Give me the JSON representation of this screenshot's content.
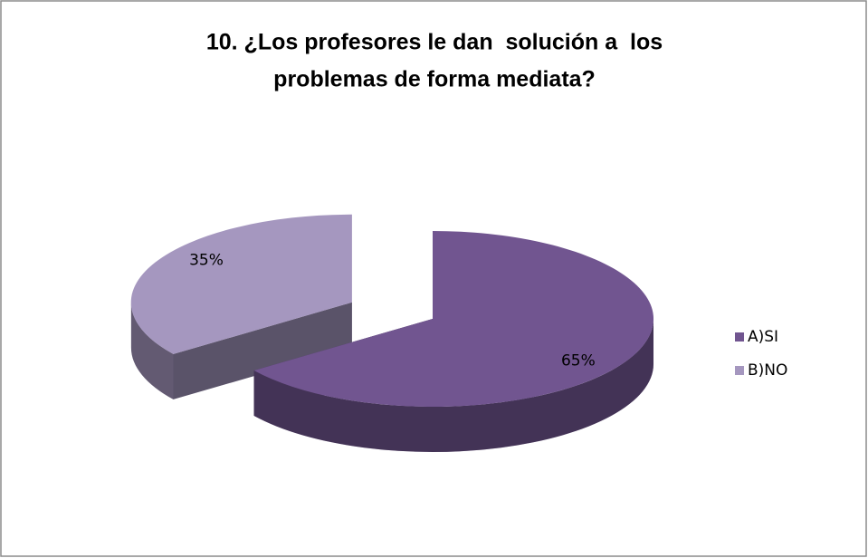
{
  "chart_data": {
    "type": "pie3d",
    "title": [
      "10. ¿Los profesores le dan  solución a  los",
      "problemas de forma mediata?"
    ],
    "categories": [
      "A)SI",
      "B)NO"
    ],
    "values": [
      65,
      35
    ],
    "value_labels": [
      "65%",
      "35%"
    ],
    "colors": [
      "#715590",
      "#a597bf"
    ],
    "legend": "right"
  }
}
